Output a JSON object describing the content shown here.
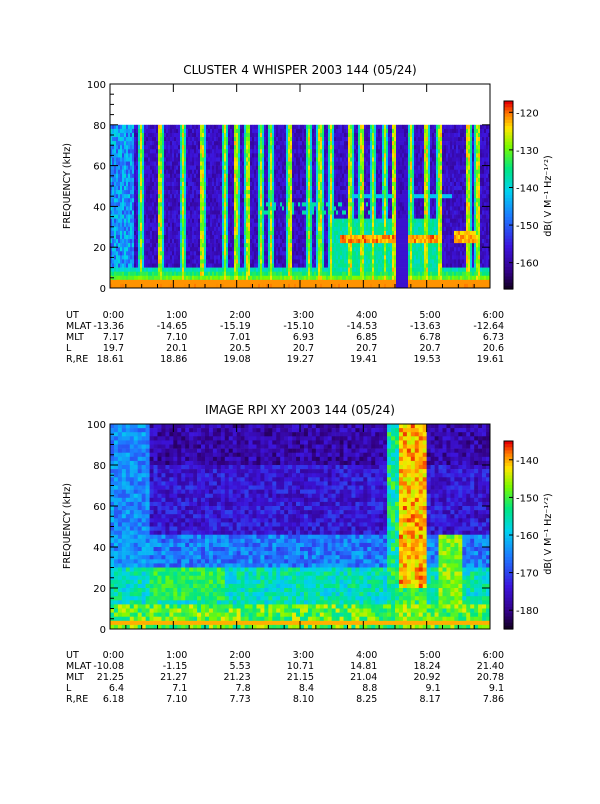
{
  "chart_data": [
    {
      "type": "heatmap",
      "title": "CLUSTER 4 WHISPER 2003 144 (05/24)",
      "ylabel": "FREQUENCY (kHz)",
      "ylim": [
        0,
        100
      ],
      "y_ticks": [
        "0",
        "20",
        "40",
        "60",
        "80",
        "100"
      ],
      "x_ticks": [
        "0:00",
        "1:00",
        "2:00",
        "3:00",
        "4:00",
        "5:00",
        "6:00"
      ],
      "data_top_khz": 80,
      "colorbar": {
        "label": "dB( V M⁻¹ Hz⁻¹ᐟ²)",
        "range": [
          -167,
          -117
        ],
        "ticks": [
          "-120",
          "-130",
          "-140",
          "-150",
          "-160"
        ],
        "tick_values": [
          -120,
          -130,
          -140,
          -150,
          -160
        ]
      },
      "ephemeris": [
        {
          "label": "UT",
          "values": [
            "0:00",
            "1:00",
            "2:00",
            "3:00",
            "4:00",
            "5:00",
            "6:00"
          ]
        },
        {
          "label": "MLAT",
          "values": [
            "-13.36",
            "-14.65",
            "-15.19",
            "-15.10",
            "-14.53",
            "-13.63",
            "-12.64"
          ]
        },
        {
          "label": "MLT",
          "values": [
            "7.17",
            "7.10",
            "7.01",
            "6.93",
            "6.85",
            "6.78",
            "6.73"
          ]
        },
        {
          "label": "L",
          "values": [
            "19.7",
            "20.1",
            "20.5",
            "20.7",
            "20.7",
            "20.7",
            "20.6"
          ]
        },
        {
          "label": "R,RE",
          "values": [
            "18.61",
            "18.86",
            "19.08",
            "19.27",
            "19.41",
            "19.53",
            "19.61"
          ]
        }
      ]
    },
    {
      "type": "heatmap",
      "title": "IMAGE RPI XY 2003 144 (05/24)",
      "ylabel": "FREQUENCY (kHz)",
      "ylim": [
        0,
        100
      ],
      "y_ticks": [
        "0",
        "20",
        "40",
        "60",
        "80",
        "100"
      ],
      "x_ticks": [
        "0:00",
        "1:00",
        "2:00",
        "3:00",
        "4:00",
        "5:00",
        "6:00"
      ],
      "colorbar": {
        "label": "dB( V M⁻¹ Hz⁻¹ᐟ²)",
        "range": [
          -185,
          -135
        ],
        "ticks": [
          "-140",
          "-150",
          "-160",
          "-170",
          "-180"
        ],
        "tick_values": [
          -140,
          -150,
          -160,
          -170,
          -180
        ]
      },
      "ephemeris": [
        {
          "label": "UT",
          "values": [
            "0:00",
            "1:00",
            "2:00",
            "3:00",
            "4:00",
            "5:00",
            "6:00"
          ]
        },
        {
          "label": "MLAT",
          "values": [
            "-10.08",
            "-1.15",
            "5.53",
            "10.71",
            "14.81",
            "18.24",
            "21.40"
          ]
        },
        {
          "label": "MLT",
          "values": [
            "21.25",
            "21.27",
            "21.23",
            "21.15",
            "21.04",
            "20.92",
            "20.78"
          ]
        },
        {
          "label": "L",
          "values": [
            "6.4",
            "7.1",
            "7.8",
            "8.4",
            "8.8",
            "9.1",
            "9.1"
          ]
        },
        {
          "label": "R,RE",
          "values": [
            "6.18",
            "7.10",
            "7.73",
            "8.10",
            "8.25",
            "8.17",
            "7.86"
          ]
        }
      ]
    }
  ]
}
